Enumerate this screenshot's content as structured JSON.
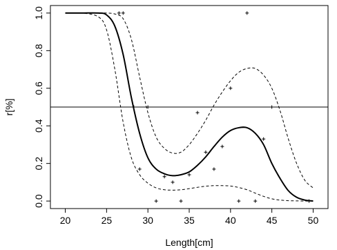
{
  "chart_data": {
    "type": "line",
    "title": "",
    "xlabel": "Length[cm]",
    "ylabel": "r[%]",
    "xlim": [
      18.2,
      51.8
    ],
    "ylim": [
      -0.04,
      1.04
    ],
    "xticks": [
      20,
      25,
      30,
      35,
      40,
      45,
      50
    ],
    "xtick_labels": [
      "20",
      "25",
      "30",
      "35",
      "40",
      "45",
      "50"
    ],
    "yticks": [
      0.0,
      0.2,
      0.4,
      0.6,
      0.8,
      1.0
    ],
    "ytick_labels": [
      "0.0",
      "0.2",
      "0.4",
      "0.6",
      "0.8",
      "1.0"
    ],
    "grid": false,
    "reference_line": {
      "orientation": "horizontal",
      "y": 0.5
    },
    "series": [
      {
        "style": "solid",
        "x": [
          20,
          22,
          24,
          25,
          26,
          27,
          28,
          29,
          30,
          31,
          32,
          33,
          34,
          35,
          36,
          37,
          38,
          39,
          40,
          41,
          42,
          43,
          44,
          45,
          46,
          47,
          48,
          49,
          50
        ],
        "y": [
          1.0,
          1.0,
          1.0,
          0.99,
          0.93,
          0.78,
          0.55,
          0.36,
          0.23,
          0.17,
          0.145,
          0.135,
          0.14,
          0.155,
          0.19,
          0.235,
          0.29,
          0.34,
          0.375,
          0.39,
          0.39,
          0.36,
          0.3,
          0.2,
          0.12,
          0.055,
          0.02,
          0.005,
          0.0
        ]
      },
      {
        "style": "dashed",
        "x": [
          20,
          22,
          24,
          25,
          26,
          27,
          28,
          29,
          30,
          31,
          32,
          33,
          34,
          35,
          36,
          37,
          38,
          39,
          40,
          41,
          42,
          43,
          44,
          45,
          46,
          47,
          48,
          49,
          50
        ],
        "y": [
          1.0,
          1.0,
          1.0,
          1.0,
          0.995,
          0.97,
          0.86,
          0.66,
          0.47,
          0.34,
          0.28,
          0.255,
          0.26,
          0.3,
          0.36,
          0.43,
          0.51,
          0.58,
          0.64,
          0.685,
          0.705,
          0.705,
          0.67,
          0.6,
          0.48,
          0.33,
          0.2,
          0.11,
          0.07
        ]
      },
      {
        "style": "dashed",
        "x": [
          20,
          22,
          24,
          25,
          26,
          27,
          28,
          29,
          30,
          31,
          32,
          33,
          34,
          35,
          36,
          37,
          38,
          39,
          40,
          41,
          42,
          43,
          44,
          45,
          46,
          47,
          48,
          49,
          50
        ],
        "y": [
          1.0,
          1.0,
          0.98,
          0.91,
          0.7,
          0.42,
          0.23,
          0.14,
          0.095,
          0.07,
          0.06,
          0.058,
          0.06,
          0.066,
          0.073,
          0.079,
          0.082,
          0.082,
          0.08,
          0.072,
          0.06,
          0.042,
          0.025,
          0.012,
          0.005,
          0.002,
          0.001,
          0.0,
          0.0
        ]
      }
    ],
    "points": {
      "marker": "+",
      "x": [
        26.5,
        27,
        28.3,
        29,
        30,
        31,
        32,
        33,
        34,
        35,
        36,
        37,
        38,
        39,
        40,
        41,
        42,
        43,
        44,
        45,
        49.5
      ],
      "y": [
        1.0,
        1.0,
        0.5,
        0.17,
        0.5,
        0.0,
        0.13,
        0.1,
        0.0,
        0.14,
        0.47,
        0.26,
        0.17,
        0.29,
        0.6,
        0.0,
        1.0,
        0.0,
        0.33,
        0.5,
        0.0
      ]
    }
  }
}
